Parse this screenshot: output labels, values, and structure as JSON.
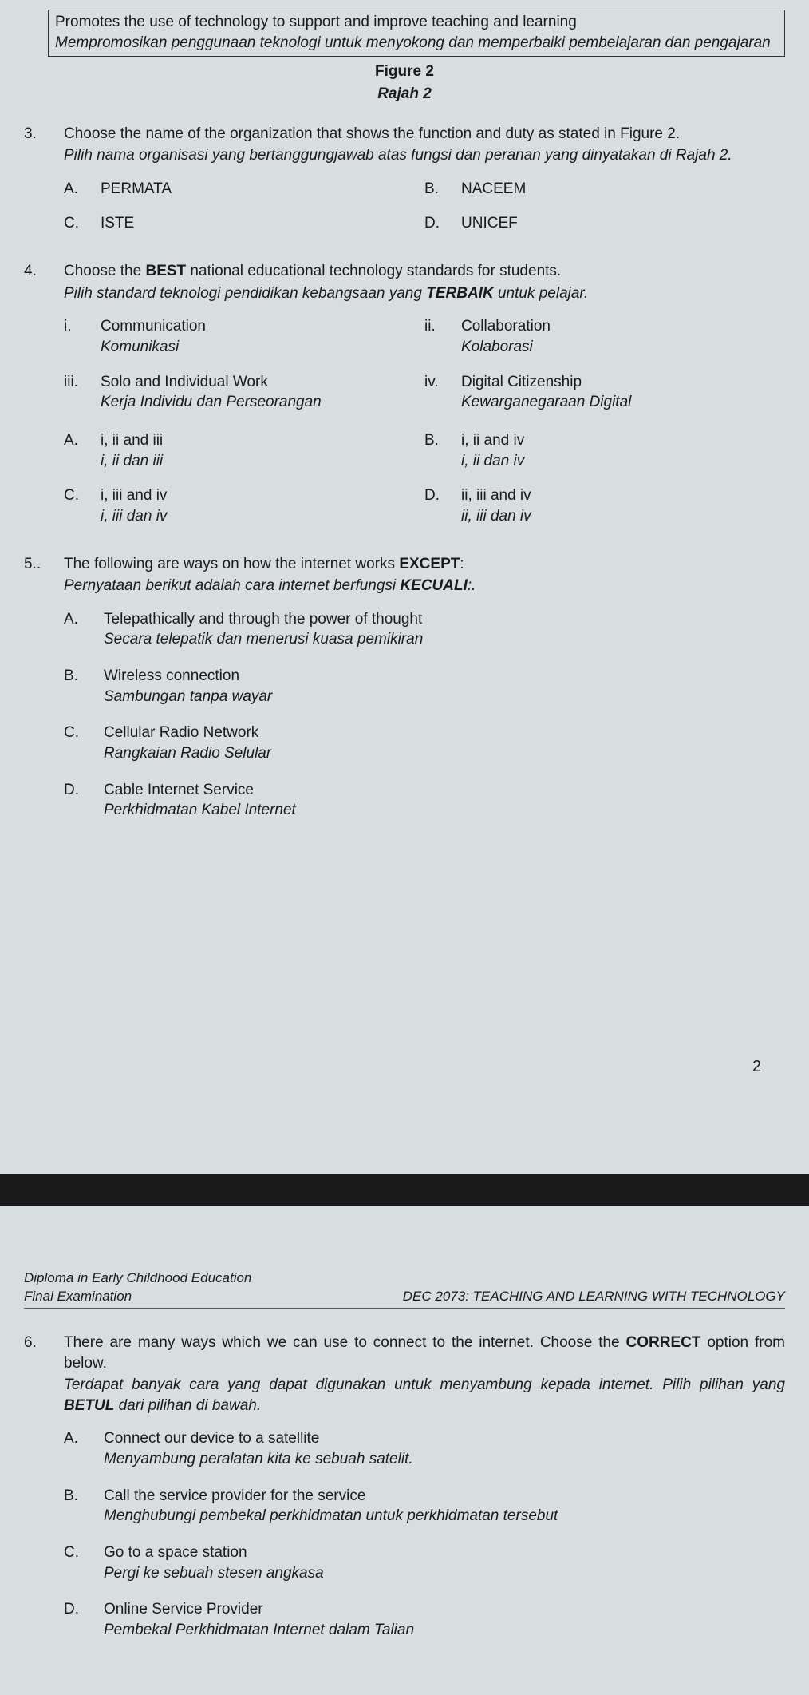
{
  "colors": {
    "page_bg": "#d8dde0",
    "gap_bg": "#1a1a1a",
    "text": "#1a1a1a",
    "border": "#333333"
  },
  "typography": {
    "base_font": "Arial",
    "base_size_pt": 14
  },
  "figure_box": {
    "line1_en": "Promotes the use of technology to support and improve teaching and learning",
    "line2_it": "Mempromosikan penggunaan teknologi untuk menyokong dan memperbaiki pembelajaran dan pengajaran"
  },
  "figure_label": {
    "en": "Figure 2",
    "it": "Rajah 2"
  },
  "q3": {
    "num": "3.",
    "stem_en": "Choose the name of the organization that shows the function and duty as stated in Figure 2.",
    "stem_it": "Pilih nama organisasi yang bertanggungjawab atas fungsi dan peranan yang dinyatakan di Rajah 2.",
    "opts": {
      "A": "PERMATA",
      "B": "NACEEM",
      "C": "ISTE",
      "D": "UNICEF"
    }
  },
  "q4": {
    "num": "4.",
    "stem_en_pre": "Choose the ",
    "stem_en_bold": "BEST",
    "stem_en_post": " national educational technology standards for students.",
    "stem_it_pre": "Pilih standard teknologi pendidikan kebangsaan yang ",
    "stem_it_bold": "TERBAIK",
    "stem_it_post": " untuk pelajar.",
    "roman": {
      "i": {
        "en": "Communication",
        "it": "Komunikasi"
      },
      "ii": {
        "en": "Collaboration",
        "it": "Kolaborasi"
      },
      "iii": {
        "en": "Solo and Individual Work",
        "it": "Kerja Individu dan Perseorangan"
      },
      "iv": {
        "en": "Digital Citizenship",
        "it": "Kewarganegaraan Digital"
      }
    },
    "opts": {
      "A": {
        "en": "i, ii and iii",
        "it": "i, ii dan iii"
      },
      "B": {
        "en": "i, ii and iv",
        "it": "i, ii dan iv"
      },
      "C": {
        "en": "i, iii and iv",
        "it": "i, iii dan iv"
      },
      "D": {
        "en": "ii, iii and iv",
        "it": "ii, iii dan iv"
      }
    }
  },
  "q5": {
    "num": "5..",
    "stem_en_pre": "The following are ways on how the internet works ",
    "stem_en_bold": "EXCEPT",
    "stem_en_post": ":",
    "stem_it_pre": "Pernyataan berikut adalah cara internet berfungsi ",
    "stem_it_bold": "KECUALI",
    "stem_it_post": ":.",
    "opts": {
      "A": {
        "en": "Telepathically and through the power of thought",
        "it": "Secara telepatik dan menerusi kuasa pemikiran"
      },
      "B": {
        "en": "Wireless connection",
        "it": "Sambungan tanpa wayar"
      },
      "C": {
        "en": "Cellular Radio Network",
        "it": "Rangkaian Radio Selular"
      },
      "D": {
        "en": "Cable Internet Service",
        "it": "Perkhidmatan Kabel Internet"
      }
    }
  },
  "page_number": "2",
  "header": {
    "line1": "Diploma in Early Childhood Education",
    "left": "Final Examination",
    "right": "DEC 2073: TEACHING AND LEARNING WITH TECHNOLOGY"
  },
  "q6": {
    "num": "6.",
    "stem_en_pre": "There are many ways which we can use to connect to the internet. Choose the ",
    "stem_en_bold": "CORRECT",
    "stem_en_post": " option from below.",
    "stem_it_pre": "Terdapat banyak cara yang dapat digunakan untuk menyambung kepada internet. Pilih pilihan yang ",
    "stem_it_bold": "BETUL",
    "stem_it_post": " dari pilihan di bawah.",
    "opts": {
      "A": {
        "en": "Connect our device to a satellite",
        "it": "Menyambung peralatan kita ke sebuah satelit."
      },
      "B": {
        "en": "Call the service provider for the service",
        "it": "Menghubungi pembekal perkhidmatan untuk perkhidmatan tersebut"
      },
      "C": {
        "en": "Go to a space station",
        "it": "Pergi ke sebuah stesen angkasa"
      },
      "D": {
        "en": "Online Service Provider",
        "it": "Pembekal Perkhidmatan Internet dalam Talian"
      }
    }
  },
  "labels": {
    "A": "A.",
    "B": "B.",
    "C": "C.",
    "D": "D.",
    "i": "i.",
    "ii": "ii.",
    "iii": "iii.",
    "iv": "iv."
  }
}
